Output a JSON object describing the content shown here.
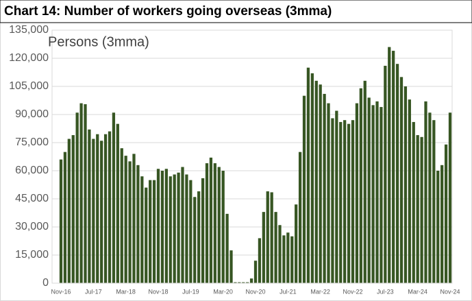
{
  "chart_data": {
    "type": "bar",
    "title": "Chart 14: Number of workers going overseas (3mma)",
    "annotation": "Persons (3mma)",
    "color": "#375623",
    "grid": true,
    "categories": [
      "Nov-16",
      null,
      null,
      null,
      null,
      null,
      null,
      null,
      "Jul-17",
      null,
      null,
      null,
      null,
      null,
      null,
      null,
      "Mar-18",
      null,
      null,
      null,
      null,
      null,
      null,
      null,
      "Nov-18",
      null,
      null,
      null,
      null,
      null,
      null,
      null,
      "Jul-19",
      null,
      null,
      null,
      null,
      null,
      null,
      null,
      "Mar-20",
      null,
      null,
      null,
      null,
      null,
      null,
      null,
      "Nov-20",
      null,
      null,
      null,
      null,
      null,
      null,
      null,
      "Jul-21",
      null,
      null,
      null,
      null,
      null,
      null,
      null,
      "Mar-22",
      null,
      null,
      null,
      null,
      null,
      null,
      null,
      "Nov-22",
      null,
      null,
      null,
      null,
      null,
      null,
      null,
      "Jul-23",
      null,
      null,
      null,
      null,
      null,
      null,
      null,
      "Mar-24",
      null,
      null,
      null,
      null,
      null,
      null,
      null,
      "Nov-24"
    ],
    "values": [
      66000,
      70000,
      77000,
      79000,
      91000,
      96000,
      95500,
      82000,
      77000,
      79500,
      76000,
      79500,
      81000,
      91000,
      85000,
      72000,
      68000,
      65000,
      69000,
      63000,
      57000,
      51000,
      55000,
      55000,
      61000,
      60000,
      61000,
      57000,
      58000,
      59000,
      62000,
      58000,
      55000,
      46000,
      49000,
      56000,
      64000,
      67000,
      64000,
      62000,
      60000,
      37000,
      17500,
      500,
      500,
      500,
      500,
      2500,
      12000,
      24000,
      38000,
      49000,
      48500,
      38000,
      31000,
      25500,
      27000,
      25000,
      42000,
      70000,
      100000,
      115000,
      112000,
      108000,
      106000,
      101000,
      96000,
      88000,
      92000,
      86000,
      87000,
      85000,
      87000,
      96000,
      104000,
      108000,
      99000,
      95000,
      97000,
      94000,
      116000,
      126000,
      124000,
      117000,
      110000,
      105000,
      98000,
      86000,
      79000,
      78000,
      97000,
      91000,
      87000,
      60000,
      63000,
      74000,
      91000
    ],
    "ylim": [
      0,
      135000
    ],
    "yticks": [
      0,
      {
        "value": 15000,
        "label": "15,000"
      },
      {
        "value": 30000,
        "label": "30,000"
      },
      {
        "value": 45000,
        "label": "45,000"
      },
      {
        "value": 60000,
        "label": "60,000"
      },
      {
        "value": 75000,
        "label": "75,000"
      },
      {
        "value": 90000,
        "label": "90,000"
      },
      {
        "value": 105000,
        "label": "105,000"
      },
      {
        "value": 120000,
        "label": "120,000"
      },
      {
        "value": 135000,
        "label": "135,000"
      }
    ]
  }
}
